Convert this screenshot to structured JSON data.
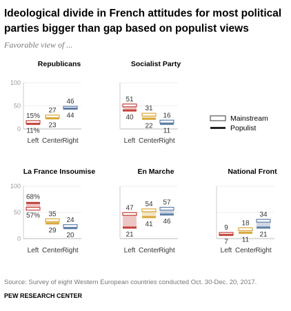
{
  "title_lines": [
    "Ideological divide in French attitudes for most political",
    "parties bigger than gap based on populist views"
  ],
  "subtitle": "Favorable view of ...",
  "legend": {
    "mainstream": "Mainstream",
    "populist": "Populist"
  },
  "source": "Source: Survey of eight Western European countries conducted Oct. 30-Dec. 20, 2017.",
  "credit": "PEW RESEARCH CENTER",
  "colors": {
    "left": "#c4423a",
    "center": "#d9a83a",
    "right": "#5f7ea6",
    "populist": "#222222",
    "axis": "#cccccc"
  },
  "chart_data": [
    {
      "type": "range",
      "title": "Republicans",
      "categories": [
        "Left",
        "Center",
        "Right"
      ],
      "series": [
        {
          "name": "Mainstream",
          "values": [
            15,
            27,
            46
          ]
        },
        {
          "name": "Populist",
          "values": [
            11,
            23,
            44
          ]
        }
      ],
      "value_labels": {
        "Mainstream": [
          "15%",
          "27",
          "46"
        ],
        "Populist": [
          "11%",
          "23",
          "44"
        ]
      },
      "ylim": [
        0,
        100
      ],
      "yticks": [
        "0",
        "50",
        "100"
      ]
    },
    {
      "type": "range",
      "title": "Socialist Party",
      "categories": [
        "Left",
        "Center",
        "Right"
      ],
      "series": [
        {
          "name": "Mainstream",
          "values": [
            51,
            31,
            16
          ]
        },
        {
          "name": "Populist",
          "values": [
            40,
            22,
            11
          ]
        }
      ],
      "value_labels": {
        "Mainstream": [
          "51",
          "31",
          "16"
        ],
        "Populist": [
          "40",
          "22",
          "11"
        ]
      },
      "ylim": [
        0,
        100
      ]
    },
    {
      "type": "range",
      "title": "La France Insoumise",
      "categories": [
        "Left",
        "Center",
        "Right"
      ],
      "series": [
        {
          "name": "Mainstream",
          "values": [
            57,
            35,
            24
          ]
        },
        {
          "name": "Populist",
          "values": [
            68,
            29,
            20
          ]
        }
      ],
      "value_labels": {
        "Mainstream": [
          "57%",
          "35",
          "24"
        ],
        "Populist": [
          "68%",
          "29",
          "20"
        ]
      },
      "ylim": [
        0,
        100
      ],
      "yticks": [
        "0",
        "50",
        "100"
      ]
    },
    {
      "type": "range",
      "title": "En Marche",
      "categories": [
        "Left",
        "Center",
        "Right"
      ],
      "series": [
        {
          "name": "Mainstream",
          "values": [
            47,
            54,
            57
          ]
        },
        {
          "name": "Populist",
          "values": [
            21,
            41,
            46
          ]
        }
      ],
      "value_labels": {
        "Mainstream": [
          "47",
          "54",
          "57"
        ],
        "Populist": [
          "21",
          "41",
          "46"
        ]
      },
      "ylim": [
        0,
        100
      ]
    },
    {
      "type": "range",
      "title": "National Front",
      "categories": [
        "Left",
        "Center",
        "Right"
      ],
      "series": [
        {
          "name": "Mainstream",
          "values": [
            9,
            18,
            34
          ]
        },
        {
          "name": "Populist",
          "values": [
            7,
            11,
            21
          ]
        }
      ],
      "value_labels": {
        "Mainstream": [
          "9",
          "18",
          "34"
        ],
        "Populist": [
          "7",
          "11",
          "21"
        ]
      },
      "ylim": [
        0,
        100
      ]
    }
  ]
}
